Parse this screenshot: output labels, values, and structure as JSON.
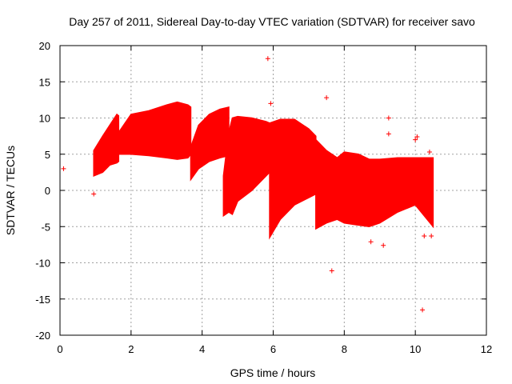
{
  "chart_data": {
    "type": "scatter",
    "title": "Day 257 of 2011, Sidereal Day-to-day VTEC variation (SDTVAR) for receiver savo",
    "xlabel": "GPS time / hours",
    "ylabel": "SDTVAR / TECUs",
    "xlim": [
      0,
      12
    ],
    "ylim": [
      -20,
      20
    ],
    "xticks": [
      0,
      2,
      4,
      6,
      8,
      10,
      12
    ],
    "yticks": [
      -20,
      -15,
      -10,
      -5,
      0,
      5,
      10,
      15,
      20
    ],
    "grid": true,
    "marker": "+",
    "color": "#ff0000",
    "band_segments": [
      {
        "name": "arc-1",
        "x": [
          0.95,
          1.2,
          1.4,
          1.6,
          1.65
        ],
        "upper": [
          5.5,
          7.5,
          9.0,
          10.5,
          10.3
        ],
        "lower": [
          2.0,
          2.5,
          3.5,
          3.8,
          4.0
        ]
      },
      {
        "name": "arc-2",
        "x": [
          1.65,
          2.0,
          2.5,
          3.0,
          3.3,
          3.6,
          3.68
        ],
        "upper": [
          8.0,
          10.5,
          11.0,
          11.8,
          12.2,
          11.8,
          11.5
        ],
        "lower": [
          5.0,
          5.0,
          4.8,
          4.5,
          4.3,
          4.5,
          5.0
        ]
      },
      {
        "name": "arc-3",
        "x": [
          3.68,
          3.9,
          4.2,
          4.5,
          4.75
        ],
        "upper": [
          6.0,
          9.0,
          10.5,
          11.2,
          11.5
        ],
        "lower": [
          1.5,
          3.0,
          4.0,
          4.5,
          4.8
        ]
      },
      {
        "name": "arc-4",
        "x": [
          4.6,
          4.75,
          4.85,
          5.0,
          5.4,
          5.8,
          5.9
        ],
        "upper": [
          2.0,
          8.0,
          10.0,
          10.2,
          10.0,
          9.5,
          9.3
        ],
        "lower": [
          -3.5,
          -3.0,
          -3.3,
          -1.5,
          0.0,
          2.0,
          2.5
        ]
      },
      {
        "name": "arc-5",
        "x": [
          5.9,
          6.2,
          6.6,
          7.0,
          7.2
        ],
        "upper": [
          9.3,
          9.8,
          9.8,
          8.5,
          7.5
        ],
        "lower": [
          -6.5,
          -4.0,
          -2.0,
          -1.0,
          -0.5
        ]
      },
      {
        "name": "arc-6",
        "x": [
          7.2,
          7.5,
          7.8,
          8.0,
          8.4,
          8.7,
          9.0,
          9.5,
          10.0,
          10.5
        ],
        "upper": [
          7.0,
          5.5,
          4.5,
          5.3,
          5.0,
          4.3,
          4.3,
          4.5,
          4.5,
          4.5
        ],
        "lower": [
          -5.3,
          -4.5,
          -4.0,
          -4.5,
          -4.8,
          -5.0,
          -4.5,
          -3.0,
          -2.0,
          -5.0
        ]
      }
    ],
    "outliers": [
      {
        "x": 0.1,
        "y": 3.0
      },
      {
        "x": 0.95,
        "y": -0.5
      },
      {
        "x": 5.85,
        "y": 18.2
      },
      {
        "x": 5.93,
        "y": 12.0
      },
      {
        "x": 7.5,
        "y": 12.8
      },
      {
        "x": 7.65,
        "y": -11.1
      },
      {
        "x": 8.75,
        "y": -7.1
      },
      {
        "x": 9.1,
        "y": -7.6
      },
      {
        "x": 9.25,
        "y": 10.0
      },
      {
        "x": 9.25,
        "y": 7.8
      },
      {
        "x": 10.0,
        "y": 7.0
      },
      {
        "x": 10.05,
        "y": 7.4
      },
      {
        "x": 10.2,
        "y": -16.5
      },
      {
        "x": 10.25,
        "y": -6.3
      },
      {
        "x": 10.45,
        "y": -6.3
      },
      {
        "x": 10.4,
        "y": 5.3
      }
    ]
  }
}
